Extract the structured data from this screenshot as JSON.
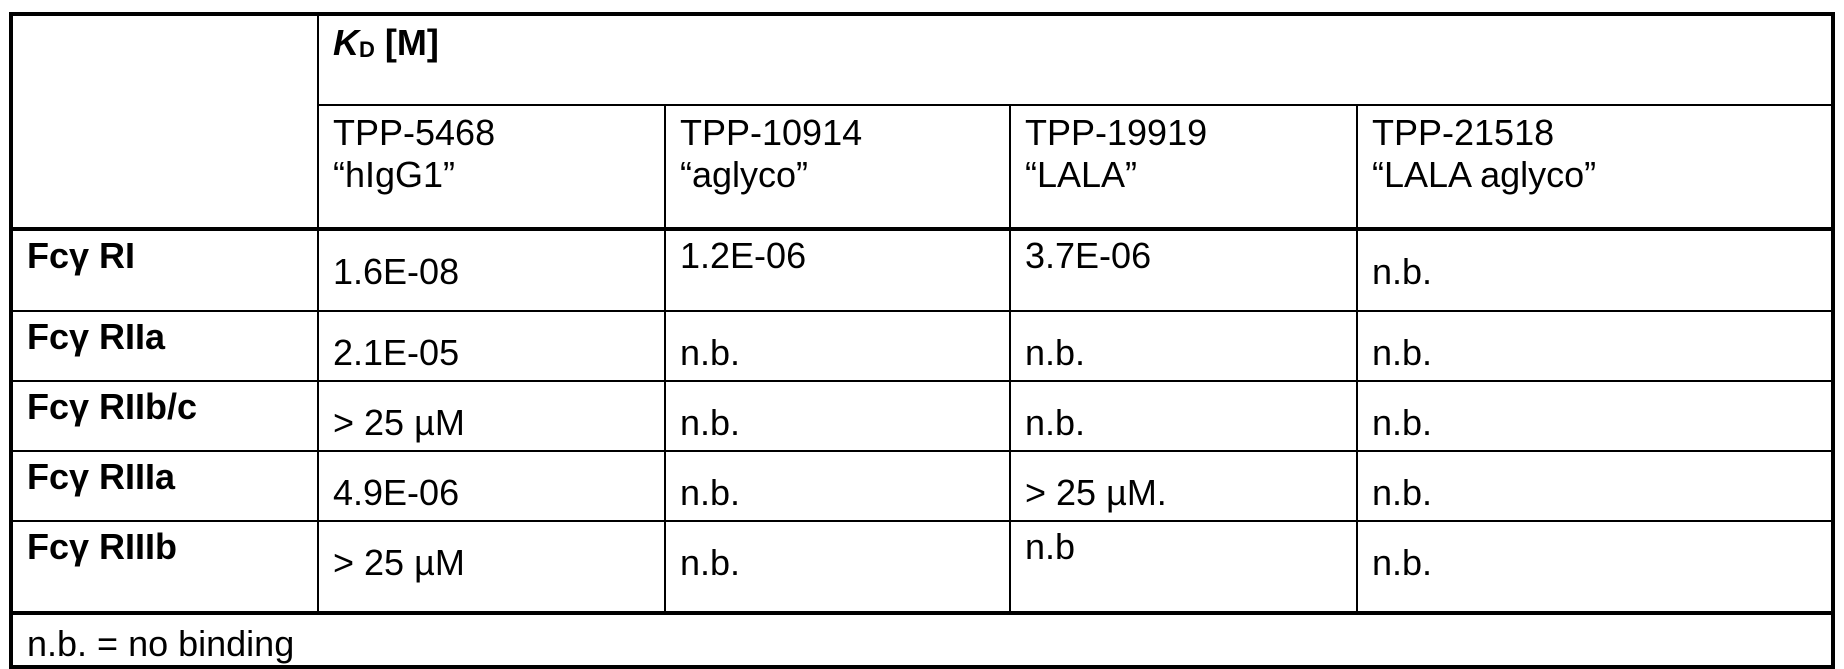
{
  "header": {
    "kd_symbol": "K",
    "kd_subscript": "D",
    "kd_unit": "[M]",
    "columns": [
      {
        "id": "TPP-5468",
        "name": "“hIgG1”"
      },
      {
        "id": "TPP-10914",
        "name": "“aglyco”"
      },
      {
        "id": "TPP-19919",
        "name": "“LALA”"
      },
      {
        "id": "TPP-21518",
        "name": "“LALA aglyco”"
      }
    ]
  },
  "rows": [
    {
      "label": "Fcγ RI",
      "values": [
        "1.6E-08",
        "1.2E-06",
        "3.7E-06",
        "n.b."
      ]
    },
    {
      "label": "Fcγ RIIa",
      "values": [
        "2.1E-05",
        "n.b.",
        "n.b.",
        "n.b."
      ]
    },
    {
      "label": "Fcγ RIIb/c",
      "values": [
        "> 25 µM",
        "n.b.",
        "n.b.",
        "n.b."
      ]
    },
    {
      "label": "Fcγ RIIIa",
      "values": [
        "4.9E-06",
        "n.b.",
        "> 25 µM.",
        "n.b."
      ]
    },
    {
      "label": "Fcγ RIIIb",
      "values": [
        "> 25 µM",
        "n.b.",
        "n.b",
        "n.b."
      ]
    }
  ],
  "footnote": "n.b. = no binding"
}
